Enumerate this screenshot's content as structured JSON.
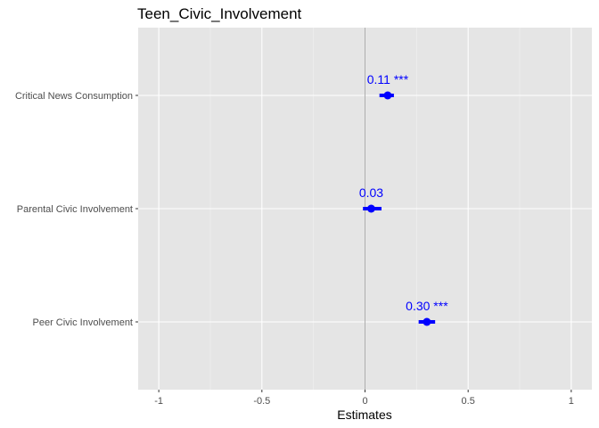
{
  "chart_data": {
    "type": "scatter",
    "title": "Teen_Civic_Involvement",
    "xlabel": "Estimates",
    "ylabel": "",
    "xlim": [
      -1.1,
      1.1
    ],
    "x_ticks": [
      -1,
      -0.5,
      0,
      0.5,
      1
    ],
    "x_tick_labels": [
      "-1",
      "-0.5",
      "0",
      "0.5",
      "1"
    ],
    "grid": true,
    "reference_line_x": 0,
    "categories": [
      "Critical News Consumption",
      "Parental Civic Involvement",
      "Peer Civic Involvement"
    ],
    "points": [
      {
        "term": "Critical News Consumption",
        "estimate": 0.11,
        "ci_low": 0.07,
        "ci_high": 0.14,
        "label": "0.11 ***"
      },
      {
        "term": "Parental Civic Involvement",
        "estimate": 0.03,
        "ci_low": -0.01,
        "ci_high": 0.08,
        "label": "0.03"
      },
      {
        "term": "Peer Civic Involvement",
        "estimate": 0.3,
        "ci_low": 0.26,
        "ci_high": 0.34,
        "label": "0.30 ***"
      }
    ],
    "colors": {
      "point": "#0000ff",
      "label": "#0000ff",
      "panel_bg": "#e5e5e5",
      "grid_major": "#ffffff",
      "grid_minor": "#f2f2f2",
      "ref_line": "#999999"
    }
  }
}
